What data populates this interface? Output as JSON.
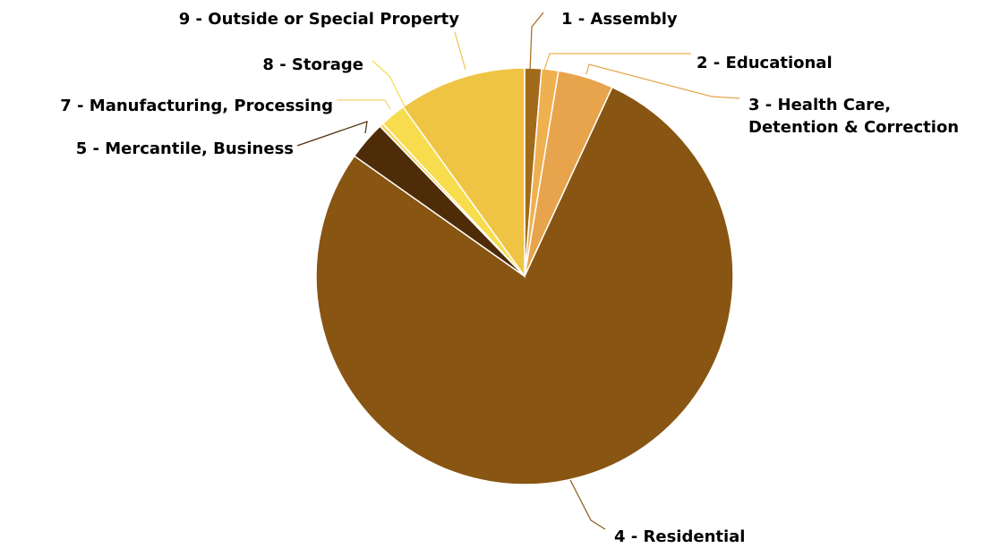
{
  "chart_data": {
    "type": "pie",
    "start_angle_deg": 0,
    "direction": "clockwise",
    "slices": [
      {
        "label": "1 - Assembly",
        "lines": [
          "1 - Assembly"
        ],
        "value": 1.3,
        "color": "#a26a1b"
      },
      {
        "label": "2 - Educational",
        "lines": [
          "2 - Educational"
        ],
        "value": 1.3,
        "color": "#efb04f"
      },
      {
        "label": "3 - Health Care, Detention & Correction",
        "lines": [
          "3 - Health Care,",
          "Detention & Correction"
        ],
        "value": 4.3,
        "color": "#e7a44d"
      },
      {
        "label": "4 - Residential",
        "lines": [
          "4 - Residential"
        ],
        "value": 77.9,
        "color": "#885512"
      },
      {
        "label": "5 - Mercantile, Business",
        "lines": [
          "5 - Mercantile, Business"
        ],
        "value": 3.0,
        "color": "#4d2c07"
      },
      {
        "label": "7 - Manufacturing, Processing",
        "lines": [
          "7 - Manufacturing, Processing"
        ],
        "value": 0.3,
        "color": "#f3d56a"
      },
      {
        "label": "8 - Storage",
        "lines": [
          "8 - Storage"
        ],
        "value": 2.0,
        "color": "#f7dc4d"
      },
      {
        "label": "9 - Outside or Special Property",
        "lines": [
          "9 - Outside or Special Property"
        ],
        "value": 9.9,
        "color": "#efc444"
      }
    ]
  }
}
